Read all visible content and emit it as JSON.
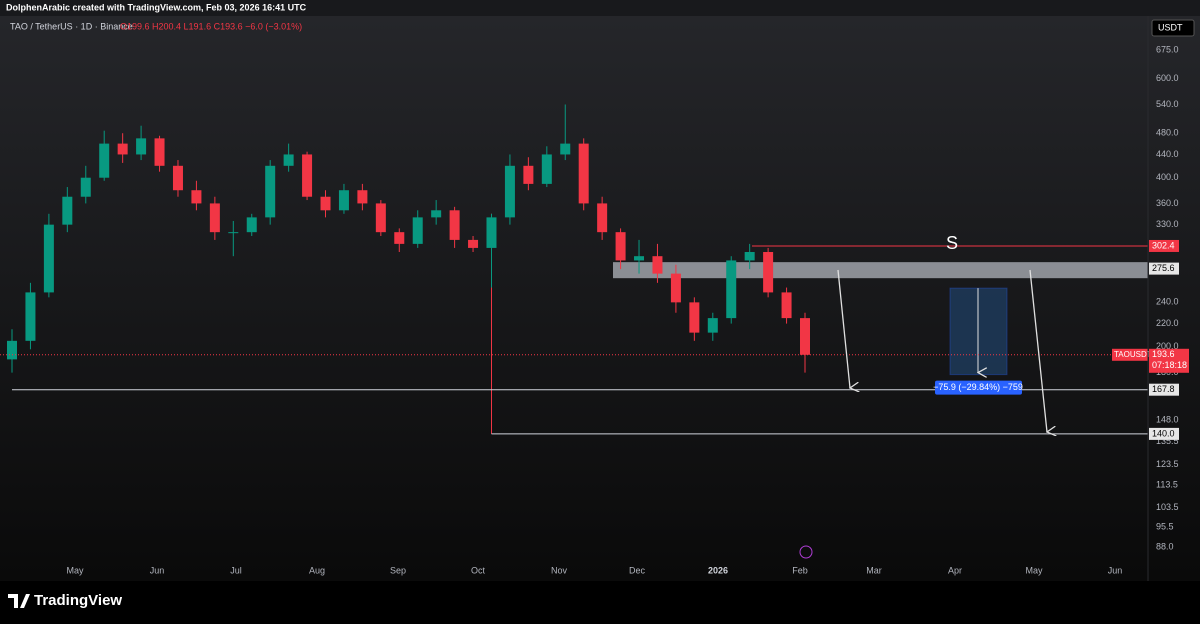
{
  "header": {
    "credit": "DolphenArabic created with TradingView.com, Feb 03, 2026 16:41 UTC",
    "symbol": "TAO / TetherUS · 1D · Binance",
    "ohlc": "O199.6 H200.4 L191.6 C193.6 −6.0 (−3.01%)"
  },
  "chart_data": {
    "type": "candlestick",
    "log_scale": true,
    "currency": "USDT",
    "ticker": "TAOUSDT",
    "countdown": "07:18:18",
    "up_color": "#089981",
    "down_color": "#f23645",
    "open": [
      190,
      205,
      250,
      330,
      370,
      400,
      460,
      440,
      470,
      420,
      380,
      360,
      320,
      320,
      340,
      420,
      440,
      370,
      350,
      380,
      360,
      320,
      305,
      340,
      350,
      310,
      300,
      340,
      420,
      390,
      440,
      460,
      360,
      320,
      285,
      290,
      270,
      240,
      212,
      225,
      285,
      295,
      250,
      225
    ],
    "high": [
      215,
      260,
      345,
      385,
      420,
      485,
      480,
      495,
      475,
      430,
      395,
      370,
      335,
      345,
      430,
      460,
      445,
      380,
      390,
      390,
      365,
      325,
      350,
      365,
      355,
      315,
      345,
      440,
      435,
      455,
      540,
      470,
      370,
      325,
      310,
      305,
      280,
      245,
      230,
      290,
      305,
      300,
      255,
      230
    ],
    "low": [
      180,
      198,
      245,
      320,
      360,
      395,
      425,
      430,
      410,
      370,
      350,
      310,
      290,
      315,
      330,
      410,
      365,
      340,
      345,
      350,
      315,
      295,
      300,
      330,
      300,
      295,
      255,
      330,
      380,
      385,
      430,
      350,
      310,
      275,
      270,
      260,
      230,
      205,
      205,
      220,
      275,
      245,
      220,
      180
    ],
    "close": [
      205,
      250,
      330,
      370,
      400,
      460,
      440,
      470,
      420,
      380,
      360,
      320,
      320,
      340,
      420,
      440,
      370,
      350,
      380,
      360,
      320,
      305,
      340,
      350,
      310,
      300,
      340,
      420,
      390,
      440,
      460,
      360,
      320,
      285,
      290,
      270,
      240,
      212,
      225,
      285,
      295,
      250,
      225,
      193.6
    ],
    "months": [
      "May",
      "Jun",
      "Jul",
      "Aug",
      "Sep",
      "Oct",
      "Nov",
      "Dec",
      "2026",
      "Feb",
      "Mar",
      "Apr",
      "May",
      "Jun"
    ],
    "ylim": [
      83.5,
      776
    ],
    "yticks": [
      {
        "value": 675,
        "label": "675.0"
      },
      {
        "value": 600,
        "label": "600.0"
      },
      {
        "value": 540,
        "label": "540.0"
      },
      {
        "value": 480,
        "label": "480.0"
      },
      {
        "value": 440,
        "label": "440.0"
      },
      {
        "value": 400,
        "label": "400.0"
      },
      {
        "value": 360,
        "label": "360.0"
      },
      {
        "value": 330,
        "label": "330.0"
      },
      {
        "value": 300,
        "label": "300.0"
      },
      {
        "value": 240,
        "label": "240.0"
      },
      {
        "value": 220,
        "label": "220.0"
      },
      {
        "value": 200,
        "label": "200.0"
      },
      {
        "value": 180,
        "label": "180.0"
      },
      {
        "value": 148,
        "label": "148.0"
      },
      135.5,
      123.5,
      113.5,
      103.5,
      95.5,
      {
        "value": 88,
        "label": "88.0"
      }
    ],
    "levels": [
      {
        "value": 302.4,
        "label": "302.4",
        "color": "#f23645"
      },
      {
        "value": 275.6,
        "label": "275.6",
        "color": "#d1d4dc"
      },
      {
        "value": 167.8,
        "label": "167.8",
        "color": "#d1d4dc"
      },
      {
        "value": 140,
        "label": "140.0",
        "color": "#d1d4dc"
      }
    ],
    "last_price": {
      "value": 193.6,
      "label": "193.6"
    },
    "zone": {
      "low": 265,
      "high": 283
    },
    "signal": "S",
    "measure": {
      "from": 254.4,
      "to": 178.5,
      "label": "−75.9 (−29.84%) −759"
    },
    "brand": "TradingView"
  }
}
